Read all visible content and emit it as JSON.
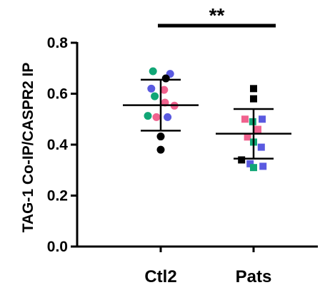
{
  "chart_data": {
    "type": "scatter",
    "ylabel": "TAG-1 Co-IP/CASPR2 IP",
    "ylim": [
      0,
      0.8
    ],
    "yticks": [
      0.0,
      0.2,
      0.4,
      0.6,
      0.8
    ],
    "ytick_labels": [
      "0.0",
      "0.2",
      "0.4",
      "0.6",
      "0.8"
    ],
    "categories": [
      "Ctl2",
      "Pats"
    ],
    "significance": {
      "label": "**",
      "between": [
        "Ctl2",
        "Pats"
      ]
    },
    "colors": {
      "green": "#11a676",
      "blue": "#5a5ae0",
      "pink": "#f0628e",
      "black": "#000000"
    },
    "groups": [
      {
        "name": "Ctl2",
        "marker": "circle",
        "mean": 0.555,
        "sd_low": 0.455,
        "sd_high": 0.655,
        "points": [
          {
            "offset": -0.09,
            "y": 0.688,
            "color": "green"
          },
          {
            "offset": 0.11,
            "y": 0.678,
            "color": "blue"
          },
          {
            "offset": 0.06,
            "y": 0.66,
            "color": "black"
          },
          {
            "offset": -0.11,
            "y": 0.62,
            "color": "blue"
          },
          {
            "offset": 0.04,
            "y": 0.615,
            "color": "pink"
          },
          {
            "offset": -0.07,
            "y": 0.59,
            "color": "green"
          },
          {
            "offset": 0.05,
            "y": 0.565,
            "color": "pink"
          },
          {
            "offset": 0.16,
            "y": 0.553,
            "color": "pink"
          },
          {
            "offset": -0.15,
            "y": 0.513,
            "color": "green"
          },
          {
            "offset": -0.05,
            "y": 0.508,
            "color": "pink"
          },
          {
            "offset": 0.08,
            "y": 0.508,
            "color": "blue"
          },
          {
            "offset": 0.0,
            "y": 0.432,
            "color": "black"
          },
          {
            "offset": 0.0,
            "y": 0.38,
            "color": "black"
          }
        ]
      },
      {
        "name": "Pats",
        "marker": "square",
        "mean": 0.443,
        "sd_low": 0.345,
        "sd_high": 0.54,
        "points": [
          {
            "offset": 0.0,
            "y": 0.62,
            "color": "black"
          },
          {
            "offset": 0.0,
            "y": 0.58,
            "color": "black"
          },
          {
            "offset": -0.1,
            "y": 0.5,
            "color": "pink"
          },
          {
            "offset": 0.1,
            "y": 0.5,
            "color": "blue"
          },
          {
            "offset": -0.01,
            "y": 0.49,
            "color": "green"
          },
          {
            "offset": 0.05,
            "y": 0.46,
            "color": "pink"
          },
          {
            "offset": -0.07,
            "y": 0.43,
            "color": "pink"
          },
          {
            "offset": 0.0,
            "y": 0.41,
            "color": "green"
          },
          {
            "offset": 0.09,
            "y": 0.39,
            "color": "blue"
          },
          {
            "offset": -0.14,
            "y": 0.34,
            "color": "black"
          },
          {
            "offset": -0.04,
            "y": 0.325,
            "color": "blue"
          },
          {
            "offset": 0.11,
            "y": 0.315,
            "color": "blue"
          },
          {
            "offset": 0.0,
            "y": 0.31,
            "color": "green"
          }
        ]
      }
    ]
  }
}
